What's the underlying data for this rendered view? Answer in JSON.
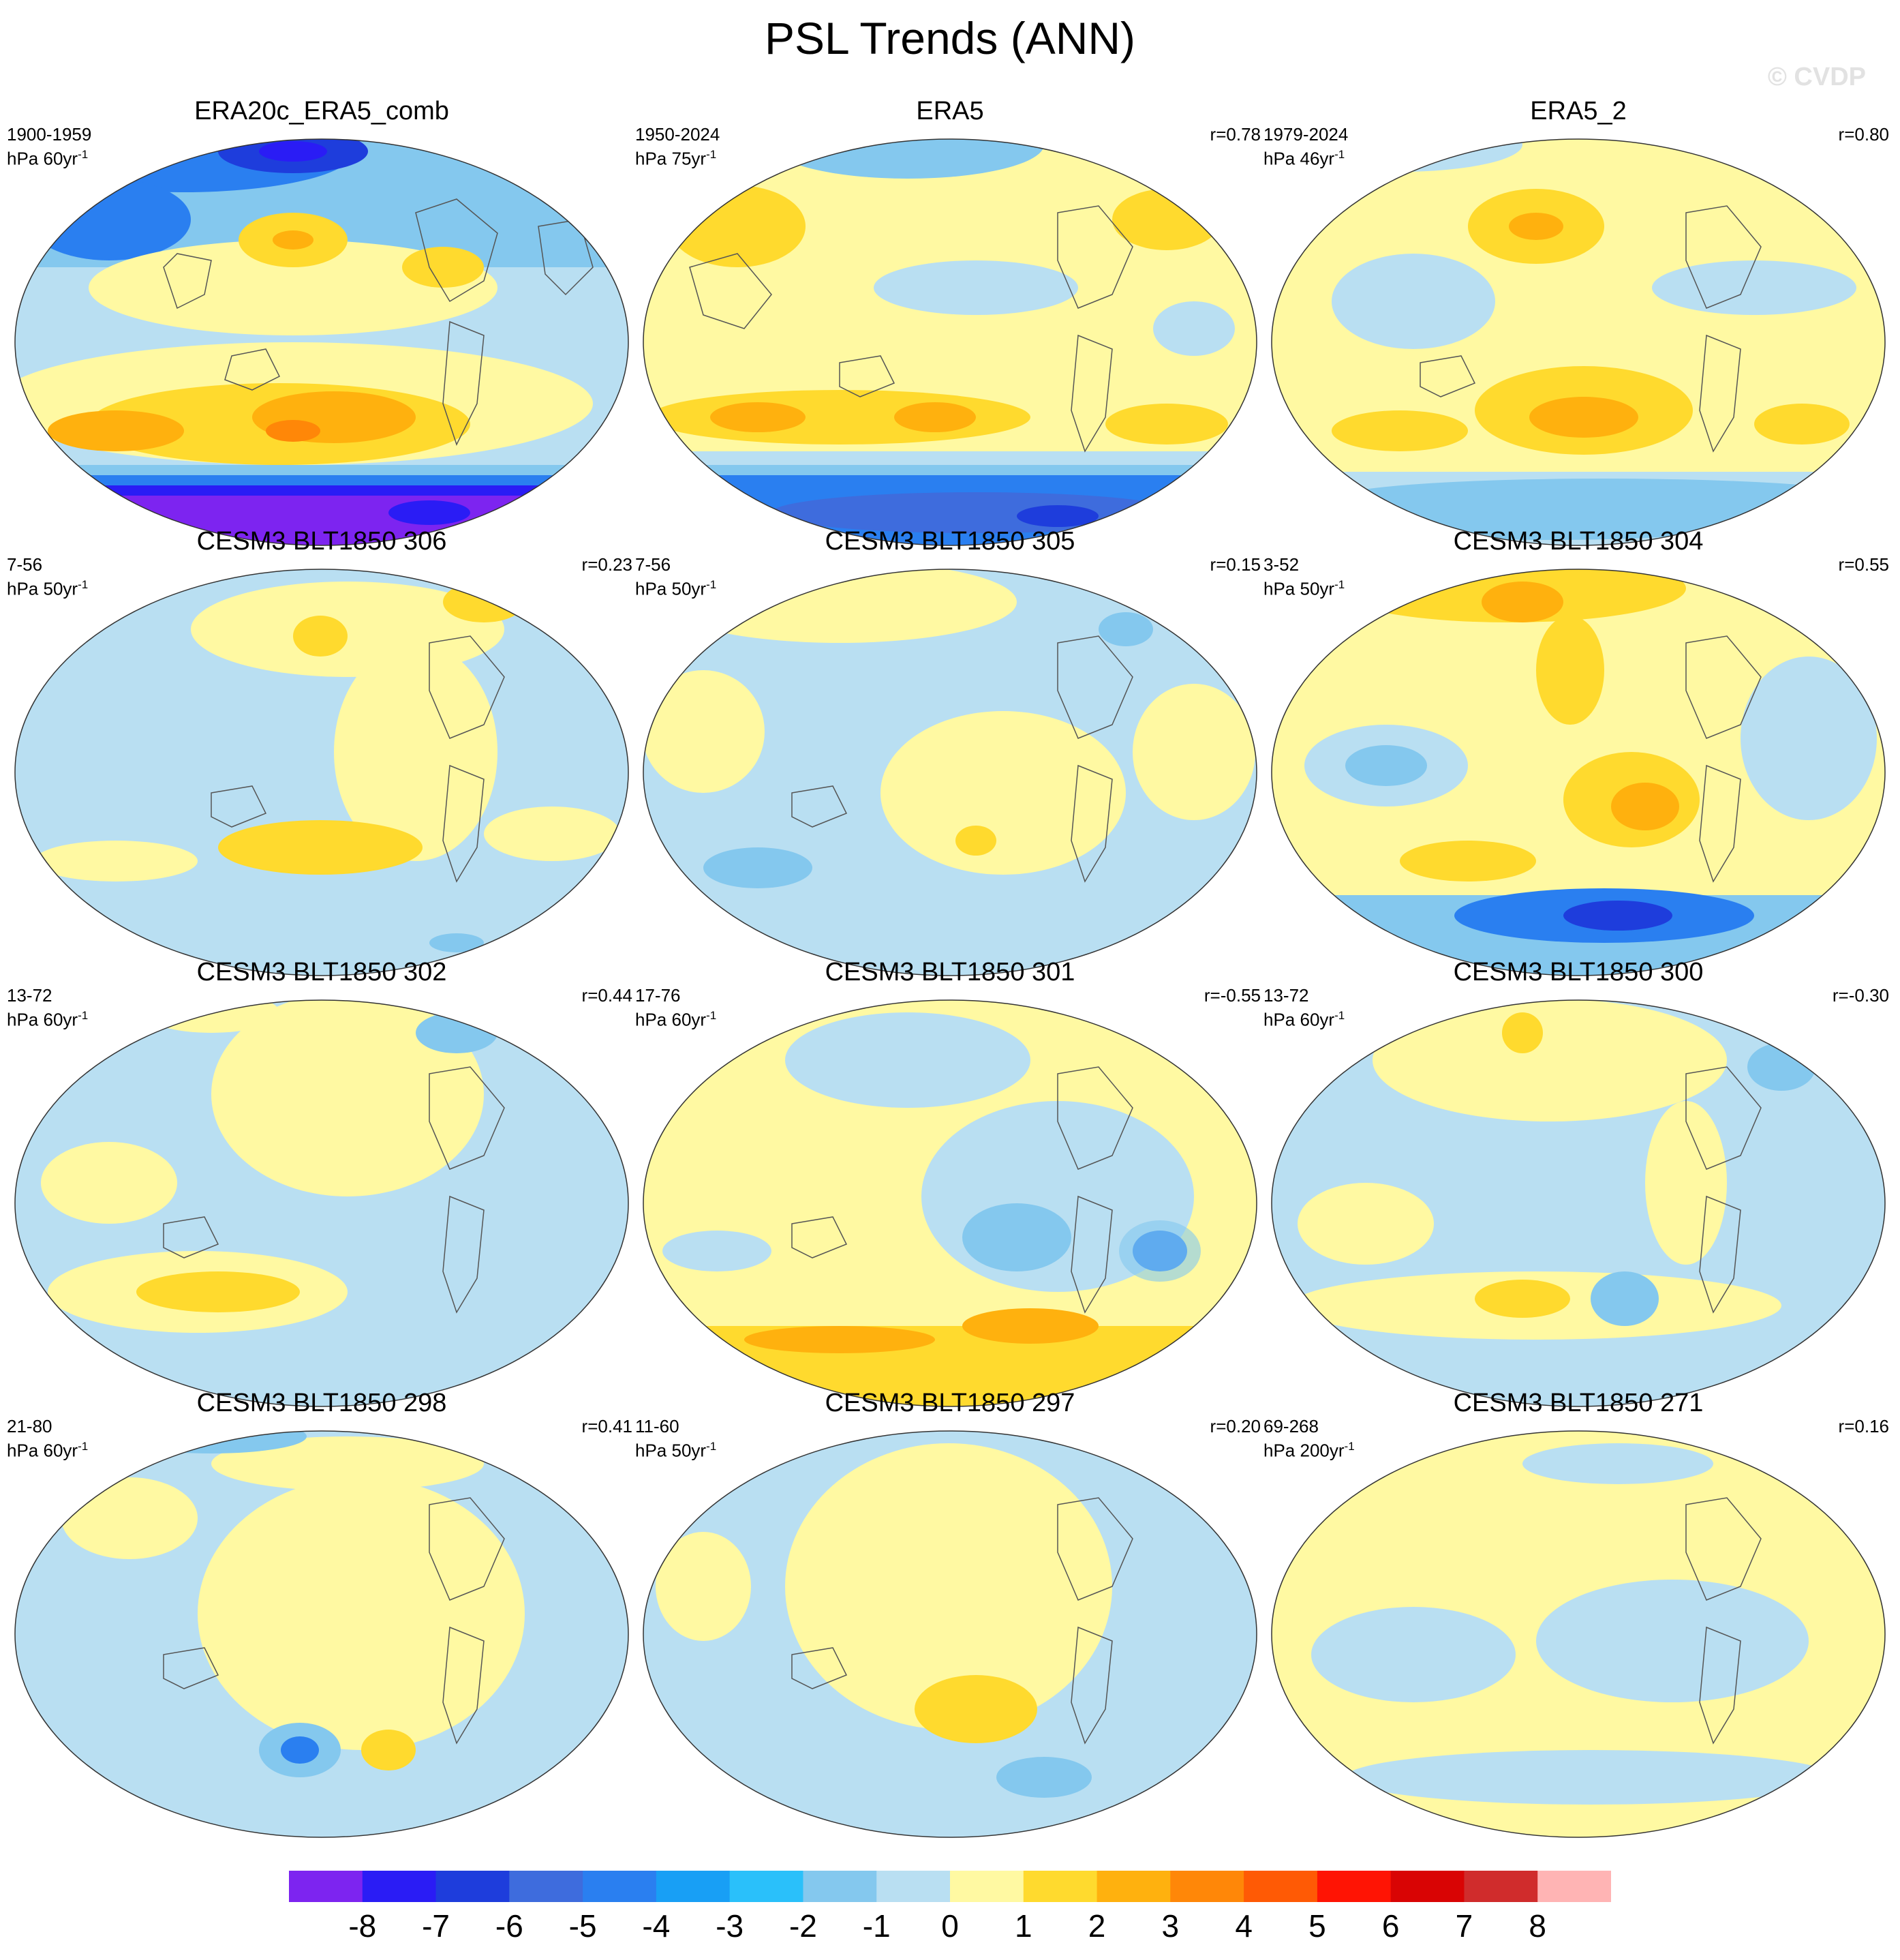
{
  "title": "PSL Trends (ANN)",
  "watermark": "© CVDP",
  "colors": {
    "palette": [
      "#7d24f0",
      "#2a1cf5",
      "#1e3ddc",
      "#3e6cdd",
      "#2a7ff0",
      "#189ff5",
      "#2ac0fa",
      "#84c8ee",
      "#b9dff2",
      "#fff9a2",
      "#ffda2e",
      "#ffb10e",
      "#ff8708",
      "#ff5a05",
      "#ff1404",
      "#d90404",
      "#d02c2c",
      "#ffb4b4"
    ],
    "ocean_base": "#b9dff2",
    "coast": "#555555"
  },
  "colorbar": {
    "labels": [
      "-8",
      "-7",
      "-6",
      "-5",
      "-4",
      "-3",
      "-2",
      "-1",
      "0",
      "1",
      "2",
      "3",
      "4",
      "5",
      "6",
      "7",
      "8"
    ]
  },
  "panels": [
    {
      "title": "ERA20c_ERA5_comb",
      "years": "1900-1959",
      "units": "hPa 60yr",
      "r": ""
    },
    {
      "title": "ERA5",
      "years": "1950-2024",
      "units": "hPa 75yr",
      "r": "r=0.78"
    },
    {
      "title": "ERA5_2",
      "years": "1979-2024",
      "units": "hPa 46yr",
      "r": "r=0.80"
    },
    {
      "title": "CESM3 BLT1850 306",
      "years": "7-56",
      "units": "hPa 50yr",
      "r": "r=0.23"
    },
    {
      "title": "CESM3 BLT1850 305",
      "years": "7-56",
      "units": "hPa 50yr",
      "r": "r=0.15"
    },
    {
      "title": "CESM3 BLT1850 304",
      "years": "3-52",
      "units": "hPa 50yr",
      "r": "r=0.55"
    },
    {
      "title": "CESM3 BLT1850 302",
      "years": "13-72",
      "units": "hPa 60yr",
      "r": "r=0.44"
    },
    {
      "title": "CESM3 BLT1850 301",
      "years": "17-76",
      "units": "hPa 60yr",
      "r": "r=-0.55"
    },
    {
      "title": "CESM3 BLT1850 300",
      "years": "13-72",
      "units": "hPa 60yr",
      "r": "r=-0.30"
    },
    {
      "title": "CESM3 BLT1850 298",
      "years": "21-80",
      "units": "hPa 60yr",
      "r": "r=0.41"
    },
    {
      "title": "CESM3 BLT1850 297",
      "years": "11-60",
      "units": "hPa 50yr",
      "r": "r=0.20"
    },
    {
      "title": "CESM3 BLT1850 271",
      "years": "69-268",
      "units": "hPa 200yr",
      "r": "r=0.16"
    }
  ]
}
